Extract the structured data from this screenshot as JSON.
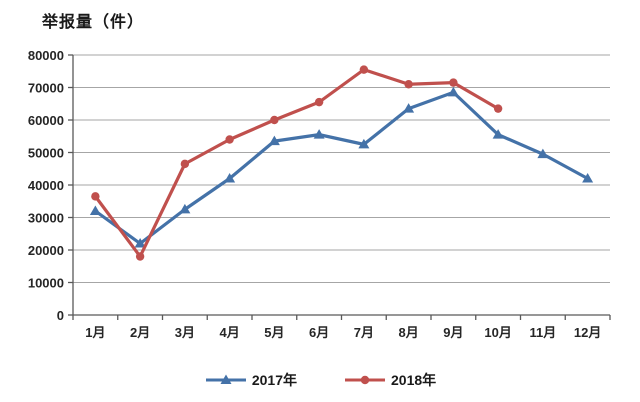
{
  "title": "举报量（件）",
  "chart_data": {
    "type": "line",
    "categories": [
      "1月",
      "2月",
      "3月",
      "4月",
      "5月",
      "6月",
      "7月",
      "8月",
      "9月",
      "10月",
      "11月",
      "12月"
    ],
    "series": [
      {
        "name": "2017年",
        "color": "#4472A8",
        "marker": "triangle",
        "values": [
          32000,
          22000,
          32500,
          42000,
          53500,
          55500,
          52500,
          63500,
          68500,
          55500,
          49500,
          42000
        ]
      },
      {
        "name": "2018年",
        "color": "#C0504D",
        "marker": "circle",
        "values": [
          36500,
          18000,
          46500,
          54000,
          60000,
          65500,
          75500,
          71000,
          71500,
          63500
        ]
      }
    ],
    "ylabel": "举报量（件）",
    "xlabel": "",
    "ylim": [
      0,
      80000
    ],
    "ytick_step": 10000,
    "grid": true,
    "legend_position": "bottom"
  },
  "colors": {
    "grid": "#A6A6A6",
    "axis": "#595959",
    "text": "#262626",
    "background": "#FFFFFF"
  }
}
